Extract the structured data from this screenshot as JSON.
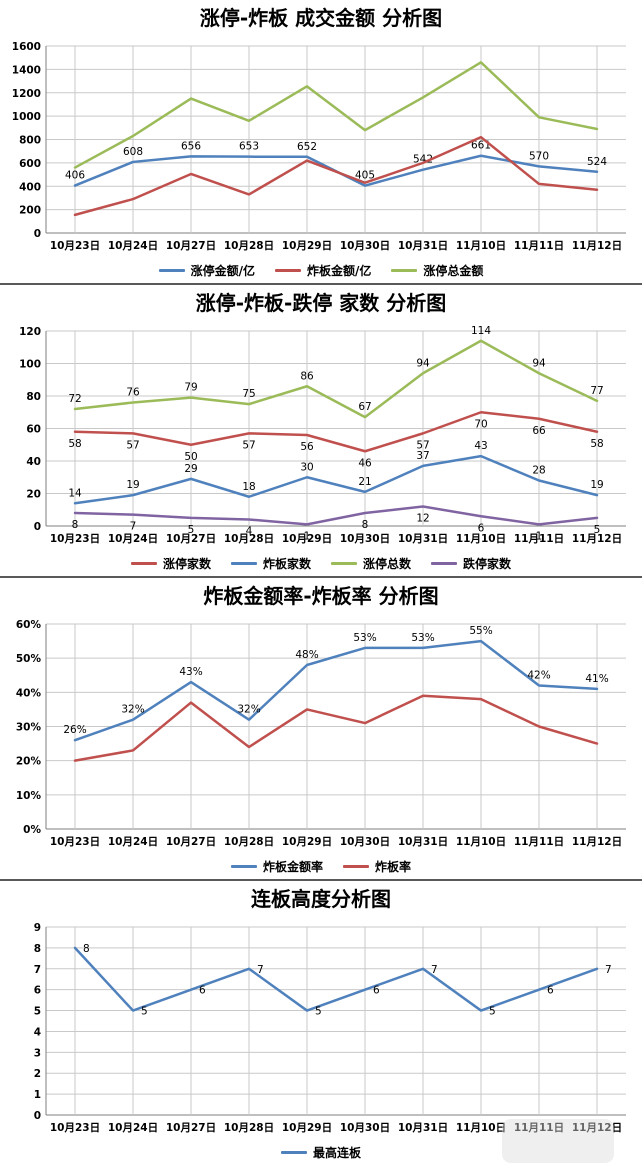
{
  "chart_data": [
    {
      "type": "line",
      "title": "涨停-炸板 成交金额 分析图",
      "categories": [
        "10月23日",
        "10月24日",
        "10月27日",
        "10月28日",
        "10月29日",
        "10月30日",
        "10月31日",
        "11月10日",
        "11月11日",
        "11月12日"
      ],
      "ylim": [
        0,
        1600
      ],
      "ytick": 200,
      "ytick_suffix": "",
      "label_suffix": "",
      "grid": true,
      "legend_position": "bottom",
      "series": [
        {
          "name": "涨停金额/亿",
          "color": "#4F81BD",
          "values": [
            406,
            608,
            656,
            653,
            652,
            405,
            542,
            661,
            570,
            524
          ],
          "labels": true,
          "label_pos": "above"
        },
        {
          "name": "炸板金额/亿",
          "color": "#C0504D",
          "values": [
            155,
            290,
            505,
            330,
            620,
            430,
            600,
            820,
            420,
            370
          ],
          "labels": false,
          "label_pos": "above"
        },
        {
          "name": "涨停总金额",
          "color": "#9BBB59",
          "values": [
            560,
            830,
            1150,
            960,
            1255,
            880,
            1160,
            1460,
            990,
            890
          ],
          "labels": false,
          "label_pos": "above"
        }
      ]
    },
    {
      "type": "line",
      "title": "涨停-炸板-跌停 家数 分析图",
      "categories": [
        "10月23日",
        "10月24日",
        "10月27日",
        "10月28日",
        "10月29日",
        "10月30日",
        "10月31日",
        "11月10日",
        "11月11日",
        "11月12日"
      ],
      "ylim": [
        0,
        120
      ],
      "ytick": 20,
      "ytick_suffix": "",
      "label_suffix": "",
      "grid": true,
      "legend_position": "bottom",
      "series": [
        {
          "name": "涨停家数",
          "color": "#C0504D",
          "values": [
            58,
            57,
            50,
            57,
            56,
            46,
            57,
            70,
            66,
            58
          ],
          "labels": true,
          "label_pos": "below"
        },
        {
          "name": "炸板家数",
          "color": "#4F81BD",
          "values": [
            14,
            19,
            29,
            18,
            30,
            21,
            37,
            43,
            28,
            19
          ],
          "labels": true,
          "label_pos": "above"
        },
        {
          "name": "涨停总数",
          "color": "#9BBB59",
          "values": [
            72,
            76,
            79,
            75,
            86,
            67,
            94,
            114,
            94,
            77
          ],
          "labels": true,
          "label_pos": "above"
        },
        {
          "name": "跌停家数",
          "color": "#8064A2",
          "values": [
            8,
            7,
            5,
            4,
            1,
            8,
            12,
            6,
            1,
            5
          ],
          "labels": true,
          "label_pos": "below"
        }
      ]
    },
    {
      "type": "line",
      "title": "炸板金额率-炸板率 分析图",
      "categories": [
        "10月23日",
        "10月24日",
        "10月27日",
        "10月28日",
        "10月29日",
        "10月30日",
        "10月31日",
        "11月10日",
        "11月11日",
        "11月12日"
      ],
      "ylim": [
        0,
        60
      ],
      "ytick": 10,
      "ytick_suffix": "%",
      "label_suffix": "%",
      "grid": true,
      "legend_position": "bottom",
      "series": [
        {
          "name": "炸板金额率",
          "color": "#4F81BD",
          "values": [
            26,
            32,
            43,
            32,
            48,
            53,
            53,
            55,
            42,
            41
          ],
          "labels": true,
          "label_pos": "above"
        },
        {
          "name": "炸板率",
          "color": "#C0504D",
          "values": [
            20,
            23,
            37,
            24,
            35,
            31,
            39,
            38,
            30,
            25
          ],
          "labels": false,
          "label_pos": "above"
        }
      ]
    },
    {
      "type": "line",
      "title": "连板高度分析图",
      "categories": [
        "10月23日",
        "10月24日",
        "10月27日",
        "10月28日",
        "10月29日",
        "10月30日",
        "10月31日",
        "11月10日",
        "11月11日",
        "11月12日"
      ],
      "ylim": [
        0,
        9
      ],
      "ytick": 1,
      "ytick_suffix": "",
      "label_suffix": "",
      "grid": true,
      "legend_position": "bottom",
      "series": [
        {
          "name": "最高连板",
          "color": "#4F81BD",
          "values": [
            8,
            5,
            6,
            7,
            5,
            6,
            7,
            5,
            6,
            7
          ],
          "labels": true,
          "label_pos": "right"
        }
      ]
    }
  ]
}
